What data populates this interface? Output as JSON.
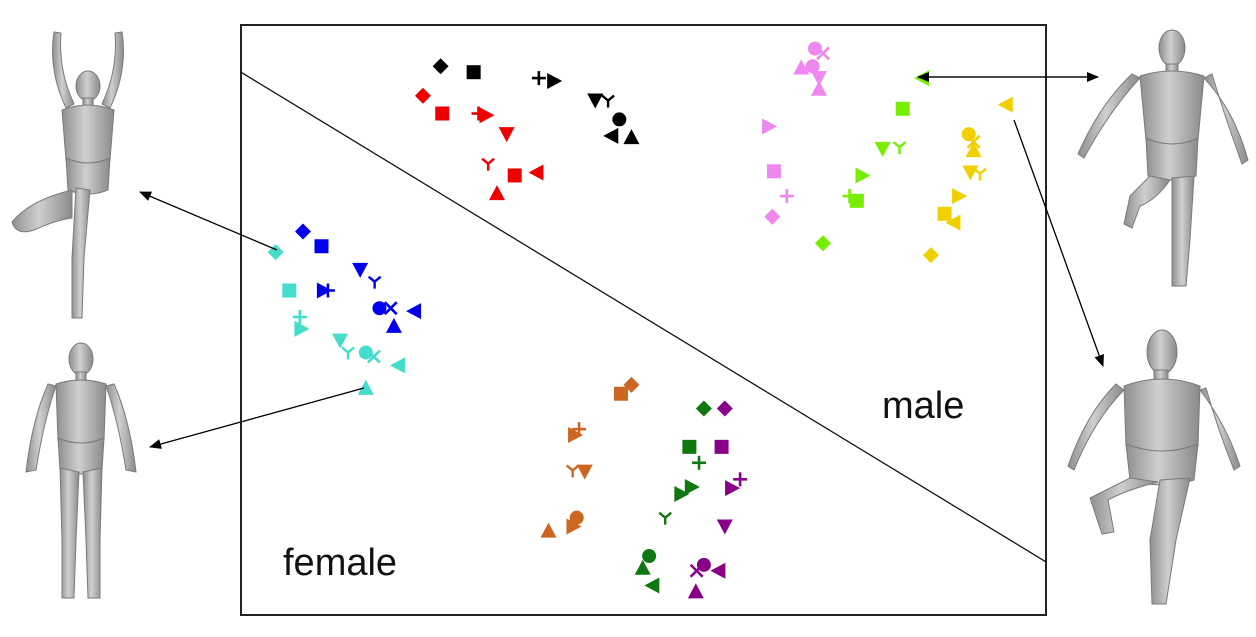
{
  "region_labels": {
    "female": "female",
    "male": "male"
  },
  "icons": {
    "figure_female_tree_pose": "female-body-model-icon",
    "figure_female_standing": "female-body-model-icon",
    "figure_male_standing_leg_raised": "male-body-model-icon",
    "figure_male_leg_raised": "male-body-model-icon"
  },
  "chart_data": {
    "type": "scatter",
    "title": "",
    "xlabel": "",
    "ylabel": "",
    "grid": false,
    "legend": "none",
    "xlim": [
      0,
      100
    ],
    "ylim": [
      0,
      100
    ],
    "separator_line": {
      "from": [
        0,
        92
      ],
      "to": [
        100,
        9
      ]
    },
    "clusters": [
      {
        "color": "#000000",
        "points": [
          {
            "x": 24.8,
            "y": 93.0,
            "m": "diamond"
          },
          {
            "x": 28.9,
            "y": 92.0,
            "m": "square"
          },
          {
            "x": 37.0,
            "y": 91.0,
            "m": "plus"
          },
          {
            "x": 38.9,
            "y": 90.5,
            "m": "tri-right"
          },
          {
            "x": 44.0,
            "y": 87.2,
            "m": "tri-down"
          },
          {
            "x": 45.6,
            "y": 87.2,
            "m": "tri-y"
          },
          {
            "x": 47.0,
            "y": 84.0,
            "m": "circle"
          },
          {
            "x": 46.0,
            "y": 81.2,
            "m": "tri-left"
          },
          {
            "x": 48.5,
            "y": 81.0,
            "m": "tri-up"
          }
        ]
      },
      {
        "color": "#ee0000",
        "points": [
          {
            "x": 22.6,
            "y": 88.0,
            "m": "diamond"
          },
          {
            "x": 25.0,
            "y": 85.0,
            "m": "square"
          },
          {
            "x": 29.5,
            "y": 85.0,
            "m": "plus"
          },
          {
            "x": 30.5,
            "y": 84.7,
            "m": "tri-right"
          },
          {
            "x": 33.0,
            "y": 81.5,
            "m": "tri-down"
          },
          {
            "x": 30.7,
            "y": 76.5,
            "m": "tri-y"
          },
          {
            "x": 34.0,
            "y": 74.5,
            "m": "square"
          },
          {
            "x": 36.7,
            "y": 75.0,
            "m": "tri-left"
          },
          {
            "x": 31.8,
            "y": 71.5,
            "m": "tri-up"
          }
        ]
      },
      {
        "color": "#ee88ee",
        "points": [
          {
            "x": 71.3,
            "y": 96.0,
            "m": "circle"
          },
          {
            "x": 72.3,
            "y": 95.2,
            "m": "cross"
          },
          {
            "x": 69.6,
            "y": 92.8,
            "m": "tri-up"
          },
          {
            "x": 71.0,
            "y": 93.0,
            "m": "circle"
          },
          {
            "x": 71.8,
            "y": 91.0,
            "m": "tri-down"
          },
          {
            "x": 71.8,
            "y": 89.2,
            "m": "tri-up"
          },
          {
            "x": 65.6,
            "y": 82.8,
            "m": "tri-right"
          },
          {
            "x": 66.2,
            "y": 75.2,
            "m": "square"
          },
          {
            "x": 67.8,
            "y": 71.0,
            "m": "plus"
          },
          {
            "x": 66.0,
            "y": 67.5,
            "m": "diamond"
          }
        ]
      },
      {
        "color": "#77ee00",
        "points": [
          {
            "x": 84.6,
            "y": 91.0,
            "m": "tri-left"
          },
          {
            "x": 82.2,
            "y": 85.8,
            "m": "square"
          },
          {
            "x": 79.7,
            "y": 79.0,
            "m": "tri-down"
          },
          {
            "x": 81.8,
            "y": 79.3,
            "m": "tri-y"
          },
          {
            "x": 77.2,
            "y": 74.5,
            "m": "tri-right"
          },
          {
            "x": 75.6,
            "y": 71.0,
            "m": "plus"
          },
          {
            "x": 76.5,
            "y": 70.2,
            "m": "square"
          },
          {
            "x": 72.3,
            "y": 63.0,
            "m": "diamond"
          }
        ]
      },
      {
        "color": "#f0d000",
        "points": [
          {
            "x": 95.0,
            "y": 86.5,
            "m": "tri-left"
          },
          {
            "x": 90.4,
            "y": 81.5,
            "m": "circle"
          },
          {
            "x": 91.0,
            "y": 80.2,
            "m": "cross"
          },
          {
            "x": 91.0,
            "y": 78.8,
            "m": "tri-up"
          },
          {
            "x": 90.6,
            "y": 75.0,
            "m": "tri-down"
          },
          {
            "x": 91.8,
            "y": 74.8,
            "m": "tri-y"
          },
          {
            "x": 89.2,
            "y": 71.0,
            "m": "tri-right"
          },
          {
            "x": 87.4,
            "y": 68.0,
            "m": "square"
          },
          {
            "x": 88.5,
            "y": 66.5,
            "m": "tri-left"
          },
          {
            "x": 85.7,
            "y": 61.0,
            "m": "diamond"
          }
        ]
      },
      {
        "color": "#0000ee",
        "points": [
          {
            "x": 7.7,
            "y": 65.0,
            "m": "diamond"
          },
          {
            "x": 10.0,
            "y": 62.5,
            "m": "square"
          },
          {
            "x": 14.8,
            "y": 58.5,
            "m": "tri-down"
          },
          {
            "x": 16.6,
            "y": 56.5,
            "m": "tri-y"
          },
          {
            "x": 10.3,
            "y": 55.0,
            "m": "tri-right"
          },
          {
            "x": 10.8,
            "y": 55.0,
            "m": "plus"
          },
          {
            "x": 17.2,
            "y": 52.0,
            "m": "circle"
          },
          {
            "x": 18.6,
            "y": 52.0,
            "m": "cross"
          },
          {
            "x": 21.5,
            "y": 51.5,
            "m": "tri-left"
          },
          {
            "x": 19.0,
            "y": 49.0,
            "m": "tri-up"
          }
        ]
      },
      {
        "color": "#44ddcc",
        "points": [
          {
            "x": 4.3,
            "y": 61.5,
            "m": "diamond"
          },
          {
            "x": 6.0,
            "y": 55.0,
            "m": "square"
          },
          {
            "x": 7.3,
            "y": 50.5,
            "m": "plus"
          },
          {
            "x": 7.5,
            "y": 48.5,
            "m": "tri-right"
          },
          {
            "x": 12.3,
            "y": 46.5,
            "m": "tri-down"
          },
          {
            "x": 13.3,
            "y": 44.5,
            "m": "tri-y"
          },
          {
            "x": 15.5,
            "y": 44.5,
            "m": "circle"
          },
          {
            "x": 16.5,
            "y": 43.8,
            "m": "cross"
          },
          {
            "x": 19.5,
            "y": 42.3,
            "m": "tri-left"
          },
          {
            "x": 15.5,
            "y": 38.5,
            "m": "tri-up"
          }
        ]
      },
      {
        "color": "#cc6622",
        "points": [
          {
            "x": 48.5,
            "y": 39.0,
            "m": "diamond"
          },
          {
            "x": 47.2,
            "y": 37.5,
            "m": "square"
          },
          {
            "x": 42.0,
            "y": 31.5,
            "m": "plus"
          },
          {
            "x": 41.5,
            "y": 30.5,
            "m": "tri-right"
          },
          {
            "x": 41.2,
            "y": 24.5,
            "m": "tri-y"
          },
          {
            "x": 42.7,
            "y": 24.3,
            "m": "tri-down"
          },
          {
            "x": 41.7,
            "y": 16.5,
            "m": "circle"
          },
          {
            "x": 41.3,
            "y": 15.0,
            "m": "tri-right"
          },
          {
            "x": 38.2,
            "y": 14.3,
            "m": "tri-up"
          }
        ]
      },
      {
        "color": "#117711",
        "points": [
          {
            "x": 57.5,
            "y": 35.0,
            "m": "diamond"
          },
          {
            "x": 55.7,
            "y": 28.5,
            "m": "square"
          },
          {
            "x": 56.9,
            "y": 25.8,
            "m": "plus"
          },
          {
            "x": 56.0,
            "y": 21.7,
            "m": "tri-right"
          },
          {
            "x": 54.7,
            "y": 20.5,
            "m": "tri-right"
          },
          {
            "x": 52.7,
            "y": 16.5,
            "m": "tri-y"
          },
          {
            "x": 50.7,
            "y": 10.0,
            "m": "circle"
          },
          {
            "x": 49.9,
            "y": 8.0,
            "m": "tri-up"
          },
          {
            "x": 51.1,
            "y": 5.0,
            "m": "tri-left"
          }
        ]
      },
      {
        "color": "#880088",
        "points": [
          {
            "x": 60.1,
            "y": 35.0,
            "m": "diamond"
          },
          {
            "x": 59.7,
            "y": 28.5,
            "m": "square"
          },
          {
            "x": 62.0,
            "y": 23.0,
            "m": "plus"
          },
          {
            "x": 61.0,
            "y": 21.5,
            "m": "tri-right"
          },
          {
            "x": 60.1,
            "y": 15.0,
            "m": "tri-down"
          },
          {
            "x": 57.5,
            "y": 8.5,
            "m": "circle"
          },
          {
            "x": 56.6,
            "y": 7.5,
            "m": "cross"
          },
          {
            "x": 59.3,
            "y": 7.5,
            "m": "tri-left"
          },
          {
            "x": 56.5,
            "y": 4.0,
            "m": "tri-up"
          }
        ]
      }
    ]
  }
}
